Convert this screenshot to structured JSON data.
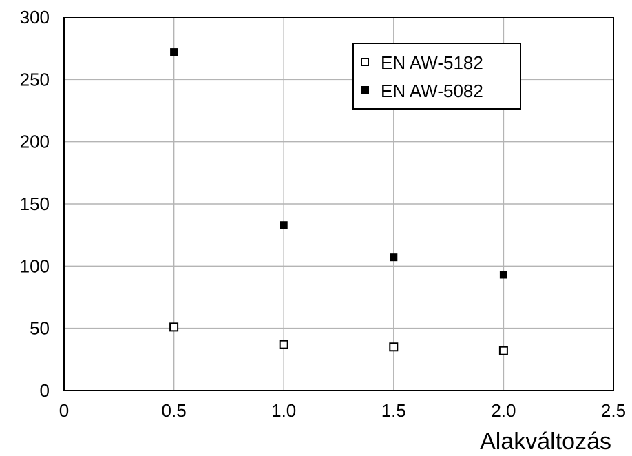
{
  "chart_data": {
    "type": "scatter",
    "xlabel": "Alakváltozás",
    "ylabel": "",
    "xlim": [
      0,
      2.5
    ],
    "ylim": [
      0,
      300
    ],
    "x_ticks": [
      "0",
      "0.5",
      "1.0",
      "1.5",
      "2.0",
      "2.5"
    ],
    "y_ticks": [
      "0",
      "50",
      "100",
      "150",
      "200",
      "250",
      "300"
    ],
    "grid": true,
    "legend_position": "top-right",
    "series": [
      {
        "name": "EN AW-5182",
        "marker": "open-square",
        "points": [
          {
            "x": 0.5,
            "y": 51
          },
          {
            "x": 1.0,
            "y": 37
          },
          {
            "x": 1.5,
            "y": 35
          },
          {
            "x": 2.0,
            "y": 32
          }
        ]
      },
      {
        "name": "EN AW-5082",
        "marker": "filled-square",
        "points": [
          {
            "x": 0.5,
            "y": 272
          },
          {
            "x": 1.0,
            "y": 133
          },
          {
            "x": 1.5,
            "y": 107
          },
          {
            "x": 2.0,
            "y": 93
          }
        ]
      }
    ]
  }
}
